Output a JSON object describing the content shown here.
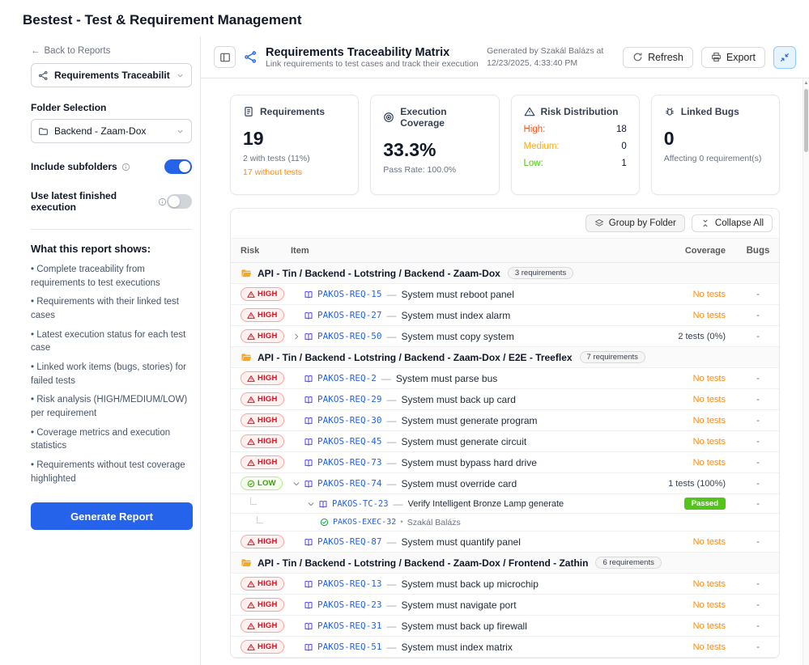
{
  "colors": {
    "accent_blue": "#2563eb",
    "link_blue": "#2563eb",
    "high_red": "#cf1322",
    "low_green": "#389e0d",
    "no_tests_orange": "#fa8c16",
    "passed_green": "#52c41a"
  },
  "app_title": "Bestest - Test & Requirement Management",
  "sidebar": {
    "back_link": "Back to Reports",
    "report_select": {
      "value": "Requirements Traceability Matri"
    },
    "folder_selection_label": "Folder Selection",
    "folder_select": {
      "value": "Backend - Zaam-Dox"
    },
    "toggles": [
      {
        "label": "Include subfolders",
        "state": "on"
      },
      {
        "label": "Use latest finished execution",
        "state": "off"
      }
    ],
    "info_title": "What this report shows:",
    "bullets": [
      "• Complete traceability from requirements to test executions",
      "• Requirements with their linked test cases",
      "• Latest execution status for each test case",
      "• Linked work items (bugs, stories) for failed tests",
      "• Risk analysis (HIGH/MEDIUM/LOW) per requirement",
      "• Coverage metrics and execution statistics",
      "• Requirements without test coverage highlighted"
    ],
    "generate_button": "Generate Report"
  },
  "header": {
    "title": "Requirements Traceability Matrix",
    "subtitle": "Link requirements to test cases and track their execution status. Ensu...",
    "generated_line1": "Generated by Szakál Balázs at",
    "generated_line2": "12/23/2025, 4:33:40 PM",
    "refresh": "Refresh",
    "export": "Export"
  },
  "cards": {
    "requirements": {
      "title": "Requirements",
      "value": "19",
      "sub1": "2 with tests (11%)",
      "sub2": "17 without tests"
    },
    "coverage": {
      "title": "Execution Coverage",
      "value": "33.3%",
      "sub1": "Pass Rate: 100.0%"
    },
    "risk": {
      "title": "Risk Distribution",
      "rows": [
        {
          "label": "High:",
          "value": "18"
        },
        {
          "label": "Medium:",
          "value": "0"
        },
        {
          "label": "Low:",
          "value": "1"
        }
      ]
    },
    "bugs": {
      "title": "Linked Bugs",
      "value": "0",
      "sub1": "Affecting 0 requirement(s)"
    }
  },
  "table": {
    "separator": "—",
    "dot": "•",
    "toolbar": {
      "group_by_folder": "Group by Folder",
      "collapse_all": "Collapse All"
    },
    "headers": {
      "risk": "Risk",
      "item": "Item",
      "coverage": "Coverage",
      "bugs": "Bugs"
    },
    "rows": [
      {
        "type": "folder",
        "name": "API - Tin / Backend - Lotstring / Backend - Zaam-Dox",
        "count": "3 requirements"
      },
      {
        "type": "req",
        "risk": "HIGH",
        "id": "PAKOS-REQ-15",
        "title": "System must reboot panel",
        "coverage": "No tests",
        "coverage_state": "none",
        "bugs": "-"
      },
      {
        "type": "req",
        "risk": "HIGH",
        "id": "PAKOS-REQ-27",
        "title": "System must index alarm",
        "coverage": "No tests",
        "coverage_state": "none",
        "bugs": "-"
      },
      {
        "type": "req",
        "risk": "HIGH",
        "chevron": "right",
        "id": "PAKOS-REQ-50",
        "title": "System must copy system",
        "coverage": "2 tests (0%)",
        "coverage_state": "some",
        "bugs": "-"
      },
      {
        "type": "folder",
        "name": "API - Tin / Backend - Lotstring / Backend - Zaam-Dox / E2E - Treeflex",
        "count": "7 requirements"
      },
      {
        "type": "req",
        "risk": "HIGH",
        "id": "PAKOS-REQ-2",
        "title": "System must parse bus",
        "coverage": "No tests",
        "coverage_state": "none",
        "bugs": "-"
      },
      {
        "type": "req",
        "risk": "HIGH",
        "id": "PAKOS-REQ-29",
        "title": "System must back up card",
        "coverage": "No tests",
        "coverage_state": "none",
        "bugs": "-"
      },
      {
        "type": "req",
        "risk": "HIGH",
        "id": "PAKOS-REQ-30",
        "title": "System must generate program",
        "coverage": "No tests",
        "coverage_state": "none",
        "bugs": "-"
      },
      {
        "type": "req",
        "risk": "HIGH",
        "id": "PAKOS-REQ-45",
        "title": "System must generate circuit",
        "coverage": "No tests",
        "coverage_state": "none",
        "bugs": "-"
      },
      {
        "type": "req",
        "risk": "HIGH",
        "id": "PAKOS-REQ-73",
        "title": "System must bypass hard drive",
        "coverage": "No tests",
        "coverage_state": "none",
        "bugs": "-"
      },
      {
        "type": "req",
        "risk": "LOW",
        "chevron": "down",
        "id": "PAKOS-REQ-74",
        "title": "System must override card",
        "coverage": "1 tests (100%)",
        "coverage_state": "some",
        "bugs": "-"
      },
      {
        "type": "tc",
        "id": "PAKOS-TC-23",
        "title": "Verify Intelligent Bronze Lamp generate",
        "status": "Passed",
        "bugs": "-"
      },
      {
        "type": "exec",
        "id": "PAKOS-EXEC-32",
        "by": "Szakál Balázs"
      },
      {
        "type": "req",
        "risk": "HIGH",
        "id": "PAKOS-REQ-87",
        "title": "System must quantify panel",
        "coverage": "No tests",
        "coverage_state": "none",
        "bugs": "-"
      },
      {
        "type": "folder",
        "name": "API - Tin / Backend - Lotstring / Backend - Zaam-Dox / Frontend - Zathin",
        "count": "6 requirements"
      },
      {
        "type": "req",
        "risk": "HIGH",
        "id": "PAKOS-REQ-13",
        "title": "System must back up microchip",
        "coverage": "No tests",
        "coverage_state": "none",
        "bugs": "-"
      },
      {
        "type": "req",
        "risk": "HIGH",
        "id": "PAKOS-REQ-23",
        "title": "System must navigate port",
        "coverage": "No tests",
        "coverage_state": "none",
        "bugs": "-"
      },
      {
        "type": "req",
        "risk": "HIGH",
        "id": "PAKOS-REQ-31",
        "title": "System must back up firewall",
        "coverage": "No tests",
        "coverage_state": "none",
        "bugs": "-"
      },
      {
        "type": "req",
        "risk": "HIGH",
        "id": "PAKOS-REQ-51",
        "title": "System must index matrix",
        "coverage": "No tests",
        "coverage_state": "none",
        "bugs": "-"
      }
    ]
  }
}
